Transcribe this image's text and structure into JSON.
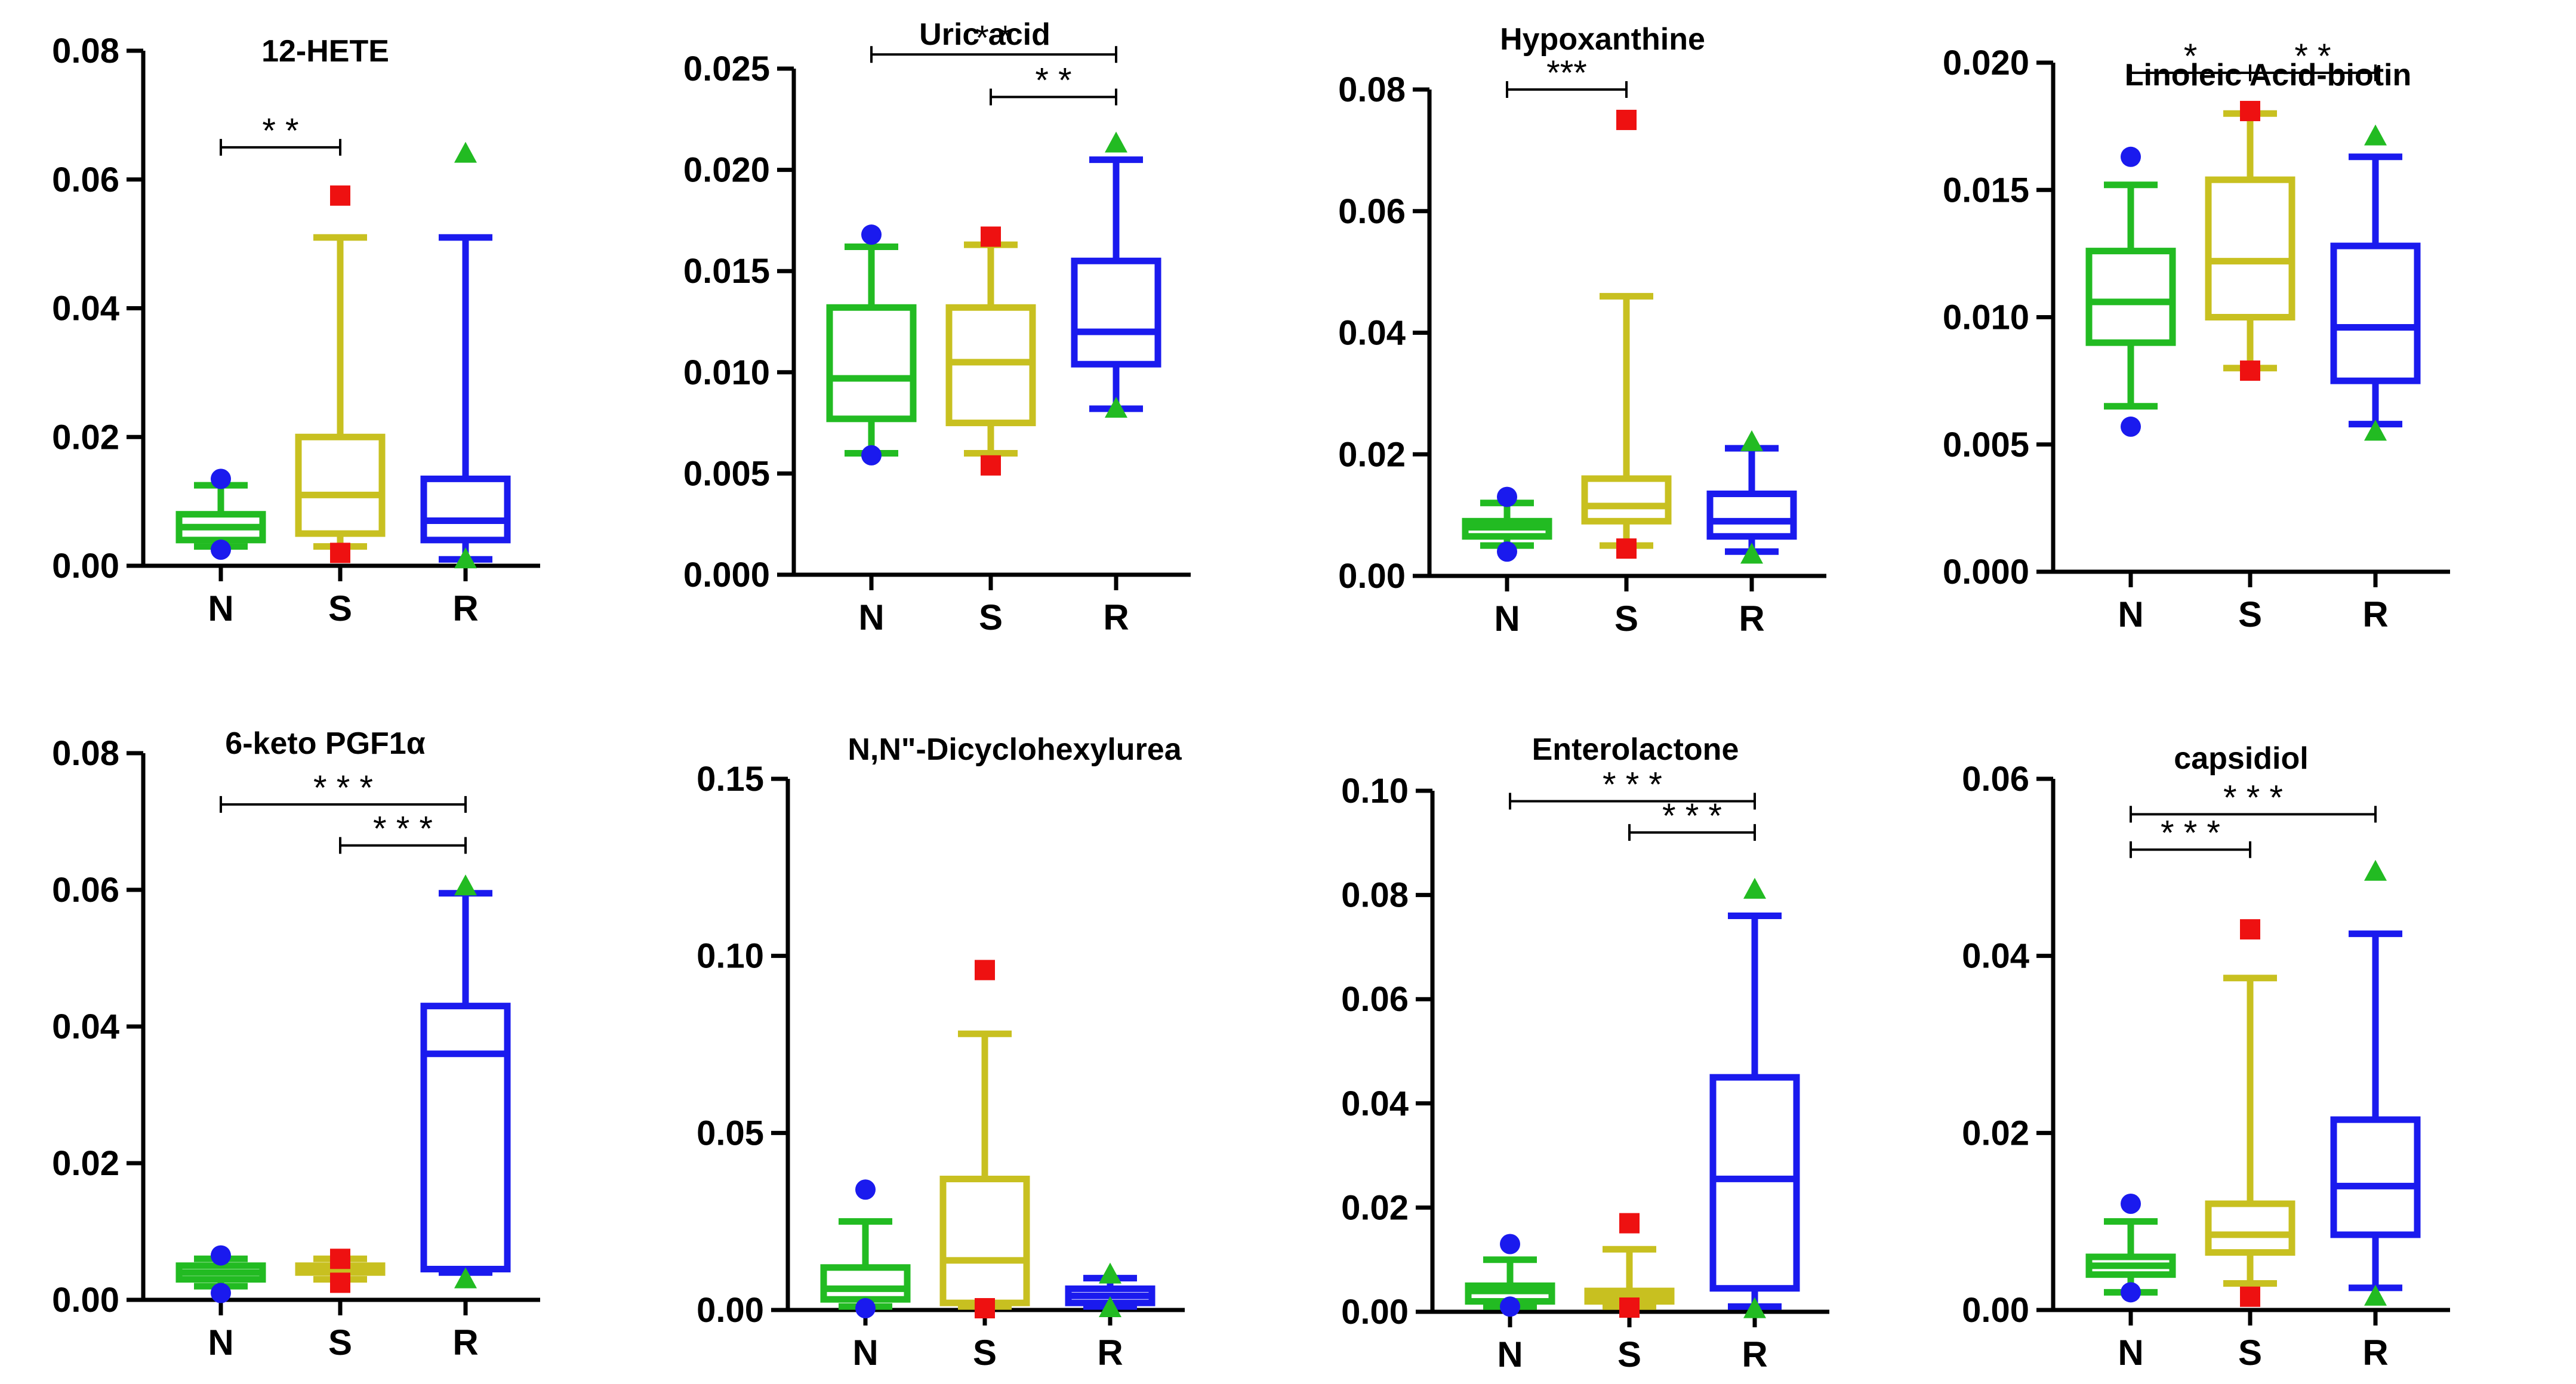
{
  "figure": {
    "title": "Metabolite abundance box plots for groups N, S and R"
  },
  "colors": {
    "N": "#22bb22",
    "S": "#c8c020",
    "R": "#1a1aee",
    "outlier_N": "#1a1aee",
    "outlier_S": "#ee1111",
    "outlier_R": "#22bb22",
    "axis": "#000000"
  },
  "chart_data": [
    {
      "type": "box",
      "title": "12-HETE",
      "categories": [
        "N",
        "S",
        "R"
      ],
      "ylim": [
        0,
        0.08
      ],
      "yticks": [
        0,
        0.02,
        0.04,
        0.06,
        0.08
      ],
      "ytick_labels": [
        "0.00",
        "0.02",
        "0.04",
        "0.06",
        "0.08"
      ],
      "boxes": [
        {
          "whisker_low": 0.003,
          "q1": 0.004,
          "median": 0.006,
          "q3": 0.008,
          "whisker_high": 0.0125,
          "outliers": [
            0.0135,
            0.0025
          ]
        },
        {
          "whisker_low": 0.003,
          "q1": 0.005,
          "median": 0.011,
          "q3": 0.02,
          "whisker_high": 0.051,
          "outliers": [
            0.0575,
            0.002
          ]
        },
        {
          "whisker_low": 0.001,
          "q1": 0.004,
          "median": 0.007,
          "q3": 0.0135,
          "whisker_high": 0.051,
          "outliers": [
            0.064,
            0.001
          ]
        }
      ],
      "significance": [
        {
          "from": 0,
          "to": 1,
          "label": "* *",
          "y": 0.065
        }
      ]
    },
    {
      "type": "box",
      "title": "Uric acid",
      "categories": [
        "N",
        "S",
        "R"
      ],
      "ylim": [
        0,
        0.025
      ],
      "yticks": [
        0,
        0.005,
        0.01,
        0.015,
        0.02,
        0.025
      ],
      "ytick_labels": [
        "0.000",
        "0.005",
        "0.010",
        "0.015",
        "0.020",
        "0.025"
      ],
      "boxes": [
        {
          "whisker_low": 0.006,
          "q1": 0.0077,
          "median": 0.0097,
          "q3": 0.0132,
          "whisker_high": 0.0162,
          "outliers": [
            0.0168,
            0.0059
          ]
        },
        {
          "whisker_low": 0.006,
          "q1": 0.0075,
          "median": 0.0105,
          "q3": 0.0132,
          "whisker_high": 0.0163,
          "outliers": [
            0.0167,
            0.0054
          ]
        },
        {
          "whisker_low": 0.0082,
          "q1": 0.0104,
          "median": 0.012,
          "q3": 0.0155,
          "whisker_high": 0.0205,
          "outliers": [
            0.0213,
            0.0082
          ]
        }
      ],
      "significance": [
        {
          "from": 0,
          "to": 2,
          "label": "* *",
          "y": 0.0257
        },
        {
          "from": 1,
          "to": 2,
          "label": "* *",
          "y": 0.0236
        }
      ]
    },
    {
      "type": "box",
      "title": "Hypoxanthine",
      "categories": [
        "N",
        "S",
        "R"
      ],
      "ylim": [
        0,
        0.08
      ],
      "yticks": [
        0,
        0.02,
        0.04,
        0.06,
        0.08
      ],
      "ytick_labels": [
        "0.00",
        "0.02",
        "0.04",
        "0.06",
        "0.08"
      ],
      "boxes": [
        {
          "whisker_low": 0.005,
          "q1": 0.0065,
          "median": 0.008,
          "q3": 0.009,
          "whisker_high": 0.012,
          "outliers": [
            0.013,
            0.004
          ]
        },
        {
          "whisker_low": 0.005,
          "q1": 0.009,
          "median": 0.0115,
          "q3": 0.016,
          "whisker_high": 0.046,
          "outliers": [
            0.075,
            0.0045
          ]
        },
        {
          "whisker_low": 0.004,
          "q1": 0.0065,
          "median": 0.009,
          "q3": 0.0135,
          "whisker_high": 0.021,
          "outliers": [
            0.022,
            0.0035
          ]
        }
      ],
      "significance": [
        {
          "from": 0,
          "to": 1,
          "label": "***",
          "y": 0.08
        }
      ]
    },
    {
      "type": "box",
      "title": "Linoleic Acid-biotin",
      "categories": [
        "N",
        "S",
        "R"
      ],
      "ylim": [
        0,
        0.02
      ],
      "yticks": [
        0,
        0.005,
        0.01,
        0.015,
        0.02
      ],
      "ytick_labels": [
        "0.000",
        "0.005",
        "0.010",
        "0.015",
        "0.020"
      ],
      "boxes": [
        {
          "whisker_low": 0.0065,
          "q1": 0.009,
          "median": 0.0106,
          "q3": 0.0126,
          "whisker_high": 0.0152,
          "outliers": [
            0.0163,
            0.0057
          ]
        },
        {
          "whisker_low": 0.008,
          "q1": 0.01,
          "median": 0.0122,
          "q3": 0.0154,
          "whisker_high": 0.018,
          "outliers": [
            0.0181,
            0.0079
          ]
        },
        {
          "whisker_low": 0.0058,
          "q1": 0.0075,
          "median": 0.0096,
          "q3": 0.0128,
          "whisker_high": 0.0163,
          "outliers": [
            0.0171,
            0.0055
          ]
        }
      ],
      "significance": [
        {
          "from": 0,
          "to": 1,
          "label": "*",
          "y": 0.0196
        },
        {
          "from": 1,
          "to": 2,
          "label": "* *",
          "y": 0.0196
        }
      ]
    },
    {
      "type": "box",
      "title": "6-keto PGF1α",
      "categories": [
        "N",
        "S",
        "R"
      ],
      "ylim": [
        0,
        0.08
      ],
      "yticks": [
        0,
        0.02,
        0.04,
        0.06,
        0.08
      ],
      "ytick_labels": [
        "0.00",
        "0.02",
        "0.04",
        "0.06",
        "0.08"
      ],
      "boxes": [
        {
          "whisker_low": 0.002,
          "q1": 0.003,
          "median": 0.004,
          "q3": 0.005,
          "whisker_high": 0.006,
          "outliers": [
            0.0065,
            0.001
          ]
        },
        {
          "whisker_low": 0.003,
          "q1": 0.004,
          "median": 0.0045,
          "q3": 0.005,
          "whisker_high": 0.006,
          "outliers": [
            0.006,
            0.0025
          ]
        },
        {
          "whisker_low": 0.004,
          "q1": 0.0045,
          "median": 0.036,
          "q3": 0.043,
          "whisker_high": 0.0595,
          "outliers": [
            0.0605,
            0.003
          ]
        }
      ],
      "significance": [
        {
          "from": 0,
          "to": 2,
          "label": "* * *",
          "y": 0.0725
        },
        {
          "from": 1,
          "to": 2,
          "label": "* * *",
          "y": 0.0665
        }
      ]
    },
    {
      "type": "box",
      "title": "N,N\"-Dicyclohexylurea",
      "categories": [
        "N",
        "S",
        "R"
      ],
      "ylim": [
        0,
        0.15
      ],
      "yticks": [
        0,
        0.05,
        0.1,
        0.15
      ],
      "ytick_labels": [
        "0.00",
        "0.05",
        "0.10",
        "0.15"
      ],
      "boxes": [
        {
          "whisker_low": 0.001,
          "q1": 0.003,
          "median": 0.006,
          "q3": 0.012,
          "whisker_high": 0.025,
          "outliers": [
            0.034,
            0.0005
          ]
        },
        {
          "whisker_low": 0.001,
          "q1": 0.002,
          "median": 0.014,
          "q3": 0.037,
          "whisker_high": 0.078,
          "outliers": [
            0.096,
            0.0005
          ]
        },
        {
          "whisker_low": 0.001,
          "q1": 0.002,
          "median": 0.004,
          "q3": 0.006,
          "whisker_high": 0.009,
          "outliers": [
            0.01,
            0.0005
          ]
        }
      ],
      "significance": []
    },
    {
      "type": "box",
      "title": "Enterolactone",
      "categories": [
        "N",
        "S",
        "R"
      ],
      "ylim": [
        0,
        0.1
      ],
      "yticks": [
        0,
        0.02,
        0.04,
        0.06,
        0.08,
        0.1
      ],
      "ytick_labels": [
        "0.00",
        "0.02",
        "0.04",
        "0.06",
        "0.08",
        "0.10"
      ],
      "boxes": [
        {
          "whisker_low": 0.001,
          "q1": 0.002,
          "median": 0.004,
          "q3": 0.005,
          "whisker_high": 0.01,
          "outliers": [
            0.013,
            0.001
          ]
        },
        {
          "whisker_low": 0.001,
          "q1": 0.002,
          "median": 0.003,
          "q3": 0.004,
          "whisker_high": 0.012,
          "outliers": [
            0.017,
            0.0008
          ]
        },
        {
          "whisker_low": 0.001,
          "q1": 0.0045,
          "median": 0.0255,
          "q3": 0.045,
          "whisker_high": 0.076,
          "outliers": [
            0.081,
            0.0005
          ]
        }
      ],
      "significance": [
        {
          "from": 0,
          "to": 2,
          "label": "* * *",
          "y": 0.098
        },
        {
          "from": 1,
          "to": 2,
          "label": "* * *",
          "y": 0.092
        }
      ]
    },
    {
      "type": "box",
      "title": "capsidiol",
      "categories": [
        "N",
        "S",
        "R"
      ],
      "ylim": [
        0,
        0.06
      ],
      "yticks": [
        0,
        0.02,
        0.04,
        0.06
      ],
      "ytick_labels": [
        "0.00",
        "0.02",
        "0.04",
        "0.06"
      ],
      "boxes": [
        {
          "whisker_low": 0.002,
          "q1": 0.004,
          "median": 0.005,
          "q3": 0.006,
          "whisker_high": 0.01,
          "outliers": [
            0.012,
            0.002
          ]
        },
        {
          "whisker_low": 0.003,
          "q1": 0.0065,
          "median": 0.0085,
          "q3": 0.012,
          "whisker_high": 0.0375,
          "outliers": [
            0.043,
            0.0015
          ]
        },
        {
          "whisker_low": 0.0025,
          "q1": 0.0085,
          "median": 0.014,
          "q3": 0.0215,
          "whisker_high": 0.0425,
          "outliers": [
            0.0495,
            0.0015
          ]
        }
      ],
      "significance": [
        {
          "from": 0,
          "to": 2,
          "label": "* * *",
          "y": 0.056
        },
        {
          "from": 0,
          "to": 1,
          "label": "* * *",
          "y": 0.052
        }
      ]
    }
  ]
}
